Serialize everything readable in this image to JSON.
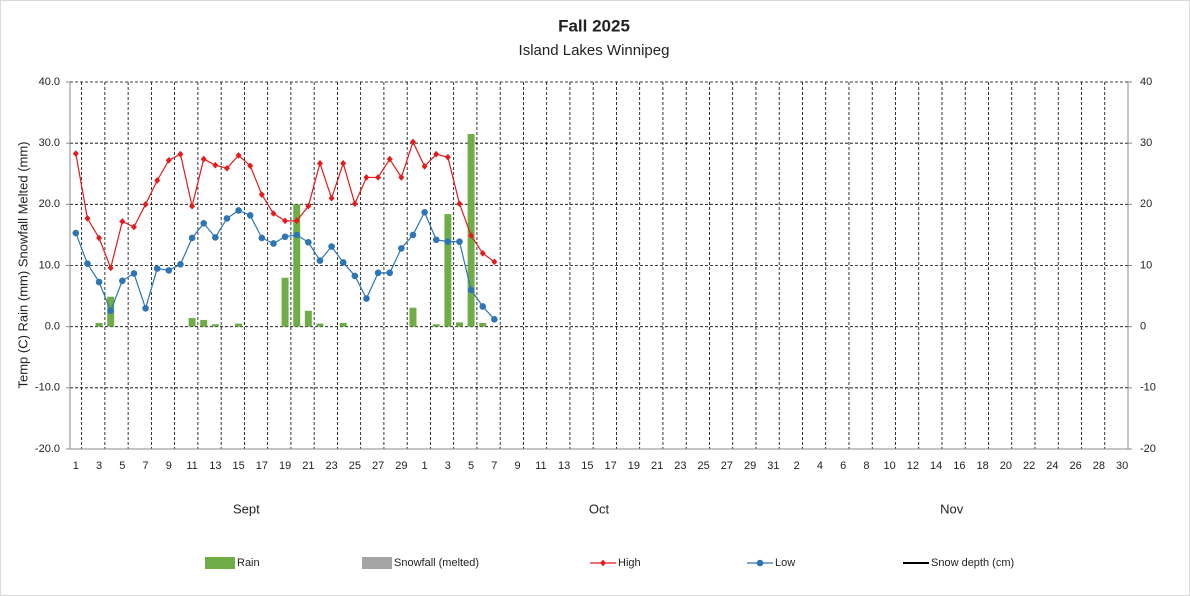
{
  "chart_data": {
    "type": "combo",
    "title": "Fall 2025",
    "subtitle": "Island Lakes Winnipeg",
    "y_label": "Temp (C) Rain (mm) Snowfall Melted (mm)",
    "categories": [
      "1",
      null,
      "3",
      null,
      "5",
      null,
      "7",
      null,
      "9",
      null,
      "11",
      null,
      "13",
      null,
      "15",
      null,
      "17",
      null,
      "19",
      null,
      "21",
      null,
      "23",
      null,
      "25",
      null,
      "27",
      null,
      "29",
      null,
      "1",
      null,
      "3",
      null,
      "5",
      null,
      "7",
      null,
      "9",
      null,
      "11",
      null,
      "13",
      null,
      "15",
      null,
      "17",
      null,
      "19",
      null,
      "21",
      null,
      "23",
      null,
      "25",
      null,
      "27",
      null,
      "29",
      null,
      "31",
      null,
      "2",
      null,
      "4",
      null,
      "6",
      null,
      "8",
      null,
      "10",
      null,
      "12",
      null,
      "14",
      null,
      "16",
      null,
      "18",
      null,
      "20",
      null,
      "22",
      null,
      "24",
      null,
      "26",
      null,
      "28",
      null,
      "30"
    ],
    "months": [
      "Sept",
      "Oct",
      "Nov"
    ],
    "ylim": [
      -20,
      40
    ],
    "yticks": [
      {
        "value": -20,
        "label": "-20.0"
      },
      {
        "value": -10,
        "label": "-10.0"
      },
      {
        "value": 0,
        "label": "0.0"
      },
      {
        "value": 10,
        "label": "10.0"
      },
      {
        "value": 20,
        "label": "20.0"
      },
      {
        "value": 30,
        "label": "30.0"
      },
      {
        "value": 40,
        "label": "40.0"
      }
    ],
    "y2lim": [
      -20,
      40
    ],
    "y2ticks": [
      -20,
      -10,
      0,
      10,
      20,
      30,
      40
    ],
    "grid": true,
    "legend": "bottom",
    "series": [
      {
        "name": "Rain",
        "type": "bar",
        "color": "#70ad47",
        "values": [
          0,
          0,
          0.6,
          4.9,
          0,
          0,
          0,
          0,
          0,
          0,
          1.4,
          1.1,
          0.4,
          0,
          0.5,
          0,
          0,
          0,
          8.0,
          20.0,
          2.6,
          0.5,
          0,
          0.6,
          0,
          0,
          0,
          0,
          0,
          3.1,
          0,
          0.4,
          18.4,
          0.7,
          31.5,
          0.6,
          0,
          null,
          null,
          null,
          null,
          null,
          null,
          null,
          null,
          null,
          null,
          null,
          null,
          null,
          null,
          null,
          null,
          null,
          null,
          null,
          null,
          null,
          null,
          null,
          null,
          null,
          null,
          null,
          null,
          null,
          null,
          null,
          null,
          null,
          null,
          null,
          null,
          null,
          null,
          null,
          null,
          null,
          null,
          null,
          null,
          null,
          null,
          null,
          null,
          null,
          null,
          null,
          null,
          null,
          null
        ]
      },
      {
        "name": "Snowfall (melted)",
        "type": "bar",
        "color": "#a5a5a5",
        "values": [
          null,
          null,
          null,
          null,
          null,
          null,
          null,
          null,
          null,
          null,
          null,
          null,
          null,
          null,
          null,
          null,
          null,
          null,
          null,
          null,
          null,
          null,
          null,
          null,
          null,
          null,
          null,
          null,
          null,
          null,
          null,
          null,
          null,
          null,
          null,
          null,
          null,
          null,
          null,
          null,
          null,
          null,
          null,
          null,
          null,
          null,
          null,
          null,
          null,
          null,
          null,
          null,
          null,
          null,
          null,
          null,
          null,
          null,
          null,
          null,
          null,
          null,
          null,
          null,
          null,
          null,
          null,
          null,
          null,
          null,
          null,
          null,
          null,
          null,
          null,
          null,
          null,
          null,
          null,
          null,
          null,
          null,
          null,
          null,
          null,
          null,
          null,
          null,
          null,
          null,
          null
        ]
      },
      {
        "name": "High",
        "type": "line",
        "marker": "diamond",
        "color": "#e41a1c",
        "values": [
          28.3,
          17.7,
          14.5,
          9.6,
          17.2,
          16.3,
          20.0,
          23.9,
          27.2,
          28.2,
          19.7,
          27.4,
          26.4,
          25.9,
          28.0,
          26.3,
          21.6,
          18.5,
          17.3,
          17.3,
          19.7,
          26.7,
          21.0,
          26.7,
          20.1,
          24.4,
          24.4,
          27.4,
          24.4,
          30.2,
          26.2,
          28.2,
          27.7,
          20.1,
          14.9,
          12.0,
          10.6,
          null,
          null,
          null,
          null,
          null,
          null,
          null,
          null,
          null,
          null,
          null,
          null,
          null,
          null,
          null,
          null,
          null,
          null,
          null,
          null,
          null,
          null,
          null,
          null,
          null,
          null,
          null,
          null,
          null,
          null,
          null,
          null,
          null,
          null,
          null,
          null,
          null,
          null,
          null,
          null,
          null,
          null,
          null,
          null,
          null,
          null,
          null,
          null,
          null,
          null,
          null,
          null,
          null,
          null
        ]
      },
      {
        "name": "Low",
        "type": "line",
        "marker": "circle",
        "color": "#2e75b6",
        "values": [
          15.3,
          10.3,
          7.3,
          2.6,
          7.5,
          8.7,
          3.0,
          9.5,
          9.2,
          10.2,
          14.5,
          16.9,
          14.6,
          17.7,
          19.0,
          18.2,
          14.5,
          13.6,
          14.7,
          15.0,
          13.8,
          10.8,
          13.1,
          10.5,
          8.3,
          4.6,
          8.8,
          8.8,
          12.8,
          15.0,
          18.7,
          14.2,
          13.9,
          13.9,
          6.0,
          3.3,
          1.2,
          null,
          null,
          null,
          null,
          null,
          null,
          null,
          null,
          null,
          null,
          null,
          null,
          null,
          null,
          null,
          null,
          null,
          null,
          null,
          null,
          null,
          null,
          null,
          null,
          null,
          null,
          null,
          null,
          null,
          null,
          null,
          null,
          null,
          null,
          null,
          null,
          null,
          null,
          null,
          null,
          null,
          null,
          null,
          null,
          null,
          null,
          null,
          null,
          null,
          null,
          null,
          null,
          null,
          null
        ]
      },
      {
        "name": "Snow depth (cm)",
        "type": "line",
        "marker": "none",
        "color": "#000000",
        "axis": "y2",
        "values": [
          null,
          null,
          null,
          null,
          null,
          null,
          null,
          null,
          null,
          null,
          null,
          null,
          null,
          null,
          null,
          null,
          null,
          null,
          null,
          null,
          null,
          null,
          null,
          null,
          null,
          null,
          null,
          null,
          null,
          null,
          null,
          null,
          null,
          null,
          null,
          null,
          null,
          null,
          null,
          null,
          null,
          null,
          null,
          null,
          null,
          null,
          null,
          null,
          null,
          null,
          null,
          null,
          null,
          null,
          null,
          null,
          null,
          null,
          null,
          null,
          null,
          null,
          null,
          null,
          null,
          null,
          null,
          null,
          null,
          null,
          null,
          null,
          null,
          null,
          null,
          null,
          null,
          null,
          null,
          null,
          null,
          null,
          null,
          null,
          null,
          null,
          null,
          null,
          null,
          null,
          null
        ]
      }
    ]
  }
}
